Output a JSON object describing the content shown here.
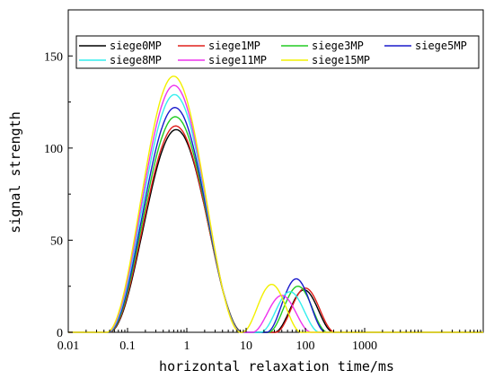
{
  "chart_data": {
    "type": "line",
    "xlabel": "horizontal relaxation time/ms",
    "ylabel": "signal strength",
    "xscale": "log",
    "xlim": [
      0.01,
      100000
    ],
    "ylim": [
      0,
      175
    ],
    "x_ticks": [
      0.01,
      0.1,
      1,
      10,
      100,
      1000
    ],
    "x_tick_labels": [
      "0.01",
      "0.1",
      "1",
      "10",
      "100",
      "1000"
    ],
    "y_ticks": [
      0,
      50,
      100,
      150
    ],
    "y_tick_labels": [
      "0",
      "50",
      "100",
      "150"
    ],
    "legend_position": "top",
    "legend_columns": 4,
    "grid": false,
    "series": [
      {
        "name": "siege0MP",
        "color": "#000000",
        "peak1": {
          "x": 0.66,
          "y": 110
        },
        "peak2": {
          "x": 95,
          "y": 23
        }
      },
      {
        "name": "siege1MP",
        "color": "#e0201c",
        "peak1": {
          "x": 0.65,
          "y": 112
        },
        "peak2": {
          "x": 100,
          "y": 24
        }
      },
      {
        "name": "siege3MP",
        "color": "#22cc22",
        "peak1": {
          "x": 0.64,
          "y": 117
        },
        "peak2": {
          "x": 75,
          "y": 25
        }
      },
      {
        "name": "siege5MP",
        "color": "#1a1acc",
        "peak1": {
          "x": 0.63,
          "y": 122
        },
        "peak2": {
          "x": 70,
          "y": 29
        }
      },
      {
        "name": "siege8MP",
        "color": "#33eeee",
        "peak1": {
          "x": 0.62,
          "y": 129
        },
        "peak2": {
          "x": 55,
          "y": 22
        }
      },
      {
        "name": "siege11MP",
        "color": "#ee33ee",
        "peak1": {
          "x": 0.61,
          "y": 134
        },
        "peak2": {
          "x": 40,
          "y": 20
        }
      },
      {
        "name": "siege15MP",
        "color": "#f2f000",
        "peak1": {
          "x": 0.6,
          "y": 139
        },
        "peak2": {
          "x": 27,
          "y": 26
        }
      }
    ]
  }
}
